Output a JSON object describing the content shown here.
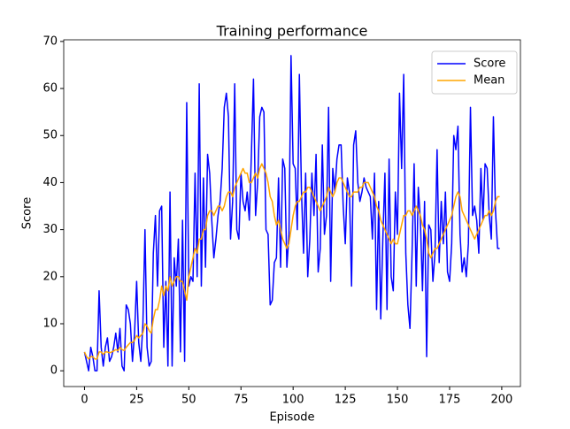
{
  "chart_data": {
    "type": "line",
    "title": "Training performance",
    "x_label": "Episode",
    "y_label": "Score",
    "x": [
      0,
      1,
      2,
      3,
      4,
      5,
      6,
      7,
      8,
      9,
      10,
      11,
      12,
      13,
      14,
      15,
      16,
      17,
      18,
      19,
      20,
      21,
      22,
      23,
      24,
      25,
      26,
      27,
      28,
      29,
      30,
      31,
      32,
      33,
      34,
      35,
      36,
      37,
      38,
      39,
      40,
      41,
      42,
      43,
      44,
      45,
      46,
      47,
      48,
      49,
      50,
      51,
      52,
      53,
      54,
      55,
      56,
      57,
      58,
      59,
      60,
      61,
      62,
      63,
      64,
      65,
      66,
      67,
      68,
      69,
      70,
      71,
      72,
      73,
      74,
      75,
      76,
      77,
      78,
      79,
      80,
      81,
      82,
      83,
      84,
      85,
      86,
      87,
      88,
      89,
      90,
      91,
      92,
      93,
      94,
      95,
      96,
      97,
      98,
      99,
      100,
      101,
      102,
      103,
      104,
      105,
      106,
      107,
      108,
      109,
      110,
      111,
      112,
      113,
      114,
      115,
      116,
      117,
      118,
      119,
      120,
      121,
      122,
      123,
      124,
      125,
      126,
      127,
      128,
      129,
      130,
      131,
      132,
      133,
      134,
      135,
      136,
      137,
      138,
      139,
      140,
      141,
      142,
      143,
      144,
      145,
      146,
      147,
      148,
      149,
      150,
      151,
      152,
      153,
      154,
      155,
      156,
      157,
      158,
      159,
      160,
      161,
      162,
      163,
      164,
      165,
      166,
      167,
      168,
      169,
      170,
      171,
      172,
      173,
      174,
      175,
      176,
      177,
      178,
      179,
      180,
      181,
      182,
      183,
      184,
      185,
      186,
      187,
      188,
      189,
      190,
      191,
      192,
      193,
      194,
      195,
      196,
      197,
      198,
      199
    ],
    "series": [
      {
        "name": "Score",
        "color": "#0000ff",
        "values": [
          4,
          2,
          0,
          5,
          3,
          0,
          0,
          17,
          5,
          1,
          5,
          7,
          2,
          3,
          5,
          8,
          4,
          9,
          1,
          0,
          14,
          13,
          10,
          2,
          8,
          19,
          6,
          2,
          10,
          30,
          5,
          1,
          2,
          25,
          33,
          18,
          34,
          35,
          5,
          19,
          1,
          38,
          1,
          24,
          18,
          28,
          4,
          32,
          2,
          57,
          18,
          20,
          19,
          42,
          20,
          61,
          18,
          41,
          22,
          46,
          42,
          32,
          24,
          28,
          33,
          36,
          43,
          56,
          59,
          54,
          28,
          36,
          61,
          30,
          28,
          42,
          36,
          34,
          38,
          32,
          46,
          62,
          33,
          40,
          54,
          56,
          55,
          30,
          29,
          14,
          15,
          23,
          24,
          41,
          22,
          45,
          43,
          22,
          29,
          67,
          44,
          43,
          30,
          63,
          38,
          25,
          42,
          20,
          28,
          42,
          33,
          46,
          21,
          26,
          48,
          29,
          33,
          56,
          19,
          43,
          38,
          45,
          48,
          48,
          35,
          27,
          41,
          38,
          18,
          48,
          51,
          40,
          36,
          38,
          41,
          39,
          38,
          37,
          28,
          42,
          13,
          36,
          11,
          28,
          42,
          13,
          45,
          20,
          17,
          38,
          29,
          59,
          43,
          63,
          25,
          14,
          9,
          25,
          44,
          18,
          39,
          32,
          17,
          36,
          3,
          31,
          30,
          19,
          25,
          47,
          23,
          36,
          27,
          38,
          21,
          19,
          27,
          50,
          47,
          52,
          29,
          21,
          24,
          20,
          27,
          56,
          33,
          35,
          32,
          25,
          43,
          32,
          44,
          43,
          33,
          28,
          54,
          34,
          26,
          26
        ]
      },
      {
        "name": "Mean",
        "color": "#ffa500",
        "values": [
          4,
          3,
          2.5,
          3,
          3,
          2.5,
          2.5,
          4,
          4,
          3.5,
          4,
          4,
          3.8,
          4,
          4.2,
          4.5,
          4.3,
          5,
          4.5,
          4.3,
          5,
          5.5,
          6,
          6,
          6.5,
          7.5,
          7,
          7.5,
          8,
          10,
          9.5,
          8.5,
          8,
          11,
          13,
          13,
          15,
          18,
          16,
          18,
          17,
          20,
          18,
          19,
          20,
          20,
          19,
          19,
          17,
          15,
          20,
          22,
          24,
          26,
          25,
          28,
          28,
          30,
          30,
          33,
          34,
          34,
          33,
          34,
          35,
          35,
          34,
          35,
          37,
          38,
          38,
          37,
          39,
          40,
          41,
          42,
          43,
          42,
          42,
          40,
          40,
          41,
          42,
          41,
          43,
          44,
          43,
          42,
          40,
          37,
          36,
          33,
          31,
          32,
          30,
          28,
          27,
          26,
          27,
          30,
          33,
          35,
          36,
          36,
          37,
          38,
          38,
          39,
          39,
          38,
          37,
          36,
          35,
          34,
          35,
          36,
          37,
          39,
          38,
          37,
          38,
          40,
          41,
          41,
          40,
          39,
          38,
          37,
          37,
          38,
          38,
          38,
          39,
          39,
          40,
          40,
          40,
          39,
          38,
          37,
          35,
          34,
          32,
          31,
          30,
          29,
          28,
          27,
          28,
          27,
          27,
          29,
          31,
          33,
          33,
          34,
          34,
          33,
          34,
          35,
          34,
          33,
          31,
          30,
          28,
          25,
          24,
          25,
          26,
          26,
          27,
          28,
          29,
          30,
          31,
          32,
          33,
          35,
          37,
          38,
          37,
          34,
          33,
          32,
          31,
          30,
          29,
          28,
          29,
          30,
          31,
          32,
          33,
          33,
          34,
          33,
          34,
          36,
          37,
          37
        ]
      }
    ],
    "xlim": [
      -9.95,
      208.95
    ],
    "xticks": [
      0,
      25,
      50,
      75,
      100,
      125,
      150,
      175,
      200
    ],
    "ylim": [
      -3.35,
      70.35
    ],
    "yticks": [
      0,
      10,
      20,
      30,
      40,
      50,
      60,
      70
    ],
    "grid": false,
    "legend": "upper right"
  }
}
